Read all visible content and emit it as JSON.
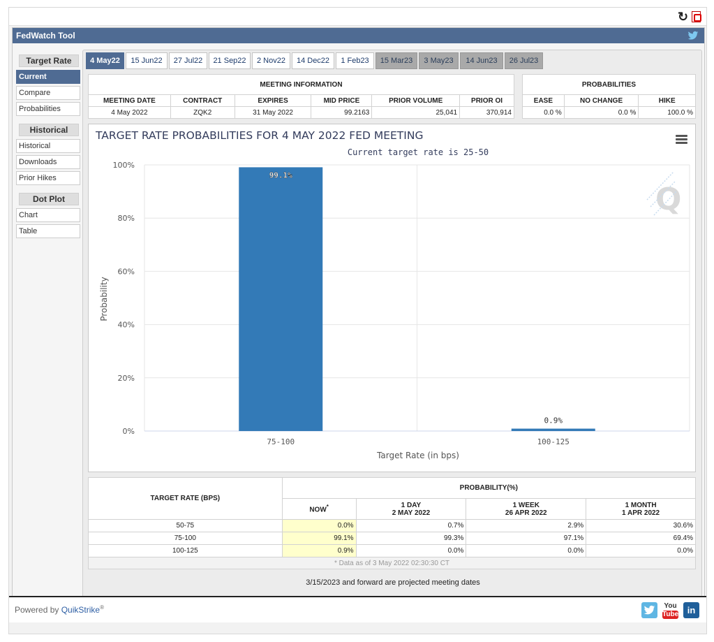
{
  "app": {
    "title": "FedWatch Tool"
  },
  "sidebar": {
    "sections": [
      {
        "heading": "Target Rate",
        "items": [
          "Current",
          "Compare",
          "Probabilities"
        ]
      },
      {
        "heading": "Historical",
        "items": [
          "Historical",
          "Downloads",
          "Prior Hikes"
        ]
      },
      {
        "heading": "Dot Plot",
        "items": [
          "Chart",
          "Table"
        ]
      }
    ],
    "active_item": "Current"
  },
  "tabs": [
    {
      "label": "4 May22",
      "state": "active"
    },
    {
      "label": "15 Jun22",
      "state": "normal"
    },
    {
      "label": "27 Jul22",
      "state": "normal"
    },
    {
      "label": "21 Sep22",
      "state": "normal"
    },
    {
      "label": "2 Nov22",
      "state": "normal"
    },
    {
      "label": "14 Dec22",
      "state": "normal"
    },
    {
      "label": "1 Feb23",
      "state": "normal"
    },
    {
      "label": "15 Mar23",
      "state": "future"
    },
    {
      "label": "3 May23",
      "state": "future"
    },
    {
      "label": "14 Jun23",
      "state": "future"
    },
    {
      "label": "26 Jul23",
      "state": "future"
    }
  ],
  "meeting_info": {
    "section_title": "MEETING INFORMATION",
    "headers": [
      "MEETING DATE",
      "CONTRACT",
      "EXPIRES",
      "MID PRICE",
      "PRIOR VOLUME",
      "PRIOR OI"
    ],
    "values": [
      "4 May 2022",
      "ZQK2",
      "31 May 2022",
      "99.2163",
      "25,041",
      "370,914"
    ]
  },
  "probabilities": {
    "section_title": "PROBABILITIES",
    "headers": [
      "EASE",
      "NO CHANGE",
      "HIKE"
    ],
    "values": [
      "0.0 %",
      "0.0 %",
      "100.0 %"
    ]
  },
  "chart_data": {
    "type": "bar",
    "title": "TARGET RATE PROBABILITIES FOR 4 MAY 2022 FED MEETING",
    "subtitle": "Current target rate is 25-50",
    "xlabel": "Target Rate (in bps)",
    "ylabel": "Probability",
    "categories": [
      "75-100",
      "100-125"
    ],
    "values": [
      99.1,
      0.9
    ],
    "data_labels": [
      "99.1%",
      "0.9%"
    ],
    "ylim": [
      0,
      100
    ],
    "yticks": [
      "0%",
      "20%",
      "40%",
      "60%",
      "80%",
      "100%"
    ],
    "grid": true,
    "bar_color": "#337ab7"
  },
  "rate_table": {
    "header_rate": "TARGET RATE (BPS)",
    "header_prob": "PROBABILITY(%)",
    "col_now": "NOW",
    "col_now_mark": "*",
    "cols": [
      {
        "line1": "1 DAY",
        "line2": "2 MAY 2022"
      },
      {
        "line1": "1 WEEK",
        "line2": "26 APR 2022"
      },
      {
        "line1": "1 MONTH",
        "line2": "1 APR 2022"
      }
    ],
    "rows": [
      {
        "rate": "50-75",
        "now": "0.0%",
        "d1": "0.7%",
        "w1": "2.9%",
        "m1": "30.6%"
      },
      {
        "rate": "75-100",
        "now": "99.1%",
        "d1": "99.3%",
        "w1": "97.1%",
        "m1": "69.4%"
      },
      {
        "rate": "100-125",
        "now": "0.9%",
        "d1": "0.0%",
        "w1": "0.0%",
        "m1": "0.0%"
      }
    ],
    "footnote": "* Data as of 3 May 2022 02:30:30 CT"
  },
  "projected_note": "3/15/2023 and forward are projected meeting dates",
  "footer": {
    "powered_prefix": "Powered by",
    "powered_brand": "QuikStrike",
    "powered_mark": "®"
  },
  "social": {
    "youtube_line1": "You",
    "youtube_line2": "Tube",
    "linkedin": "in"
  }
}
